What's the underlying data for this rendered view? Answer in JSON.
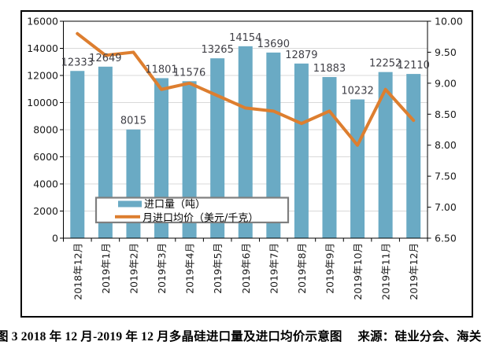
{
  "figure": {
    "caption": "图 3  2018 年 12 月-2019 年 12 月多晶硅进口量及进口均价示意图　 来源：硅业分会、海关"
  },
  "chart_data": {
    "type": "combo-bar-line",
    "title": "",
    "categories": [
      "2018年12月",
      "2019年1月",
      "2019年2月",
      "2019年3月",
      "2019年4月",
      "2019年5月",
      "2019年6月",
      "2019年7月",
      "2019年8月",
      "2019年9月",
      "2019年10月",
      "2019年11月",
      "2019年12月"
    ],
    "series": [
      {
        "name": "进口量（吨）",
        "type": "bar",
        "axis": "left",
        "color": "#6aaac4",
        "values": [
          12333,
          12649,
          8015,
          11801,
          11576,
          13265,
          14154,
          13690,
          12879,
          11883,
          10232,
          12252,
          12110
        ],
        "data_labels_visible": true
      },
      {
        "name": "月进口均价（美元/千克）",
        "type": "line",
        "axis": "right",
        "color": "#dd7e2f",
        "values": [
          9.8,
          9.45,
          9.5,
          8.9,
          9.0,
          8.8,
          8.6,
          8.55,
          8.35,
          8.55,
          8.0,
          8.9,
          8.4
        ],
        "data_labels_visible": false
      }
    ],
    "left_axis": {
      "min": 0,
      "max": 16000,
      "step": 2000,
      "tick_labels": [
        "0",
        "2000",
        "4000",
        "6000",
        "8000",
        "10000",
        "12000",
        "14000",
        "16000"
      ]
    },
    "right_axis": {
      "min": 6.5,
      "max": 10.0,
      "step": 0.5,
      "tick_labels": [
        "6.50",
        "7.00",
        "7.50",
        "8.00",
        "8.50",
        "9.00",
        "9.50",
        "10.00"
      ]
    },
    "grid": true,
    "legend_position": "inside-bottom-left",
    "colors": {
      "grid": "#d9d9d9",
      "frame": "#000000",
      "plot_border": "#000000",
      "axis_text": "#1a1a1a",
      "data_label_text": "#3f3f46",
      "legend_border": "#7f7f7f",
      "legend_fill": "#ffffff"
    }
  }
}
